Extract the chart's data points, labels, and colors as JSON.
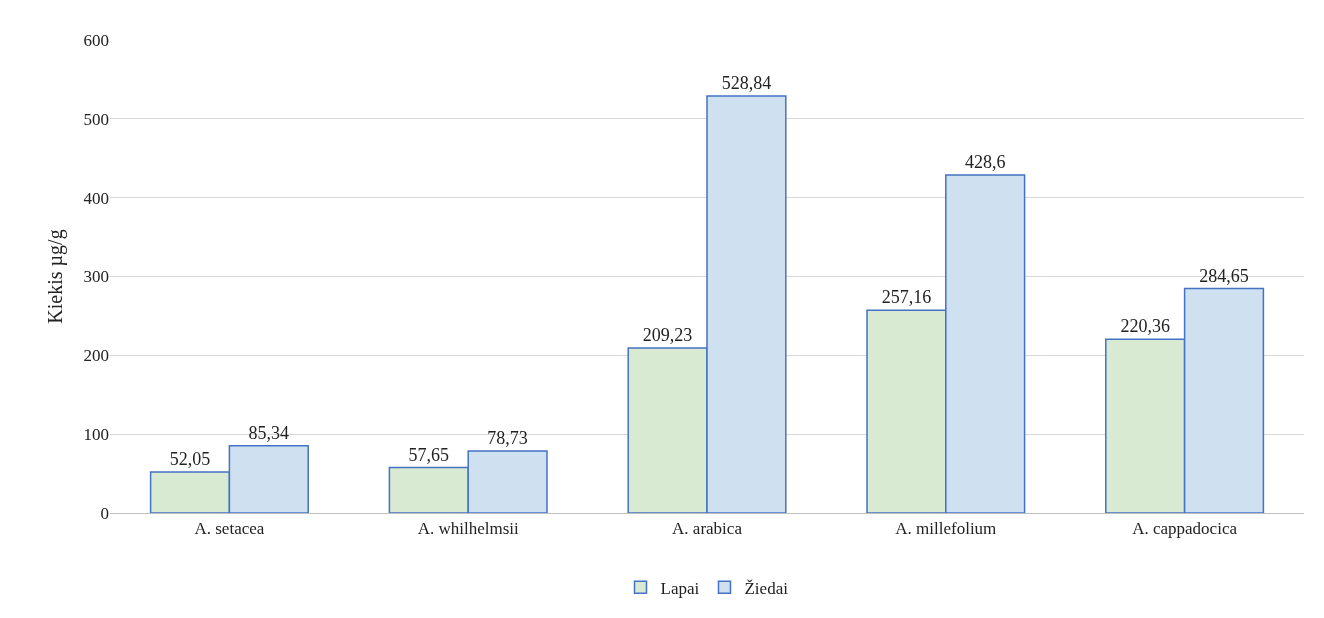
{
  "chart_data": {
    "type": "bar",
    "ylabel": "Kiekis µg/g",
    "categories": [
      "A. setacea",
      "A. whilhelmsii",
      "A. arabica",
      "A. millefolium",
      "A. cappadocica"
    ],
    "series": [
      {
        "name": "Lapai",
        "color": "#d9ead3",
        "values": [
          52.05,
          57.65,
          209.23,
          257.16,
          220.36
        ],
        "value_labels": [
          "52,05",
          "57,65",
          "209,23",
          "257,16",
          "220,36"
        ]
      },
      {
        "name": "Žiedai",
        "color": "#cfe0f1",
        "values": [
          85.34,
          78.73,
          528.84,
          428.6,
          284.65
        ],
        "value_labels": [
          "85,34",
          "78,73",
          "528,84",
          "428,6",
          "284,65"
        ]
      }
    ],
    "ylim": [
      0,
      600
    ],
    "yticks": [
      0,
      100,
      200,
      300,
      400,
      500,
      600
    ],
    "grid": "y",
    "legend": "bottom"
  }
}
